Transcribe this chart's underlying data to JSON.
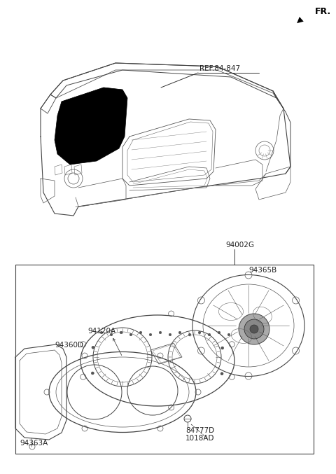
{
  "bg_color": "#ffffff",
  "fr_label": "FR.",
  "labels": {
    "REF_84_847": "REF.84-847",
    "94002G": "94002G",
    "94365B": "94365B",
    "94120A": "94120A",
    "94360D": "94360D",
    "94363A": "94363A",
    "84777D": "84777D",
    "1018AD": "1018AD"
  },
  "lc": "#333333",
  "lc_thin": "#555555"
}
